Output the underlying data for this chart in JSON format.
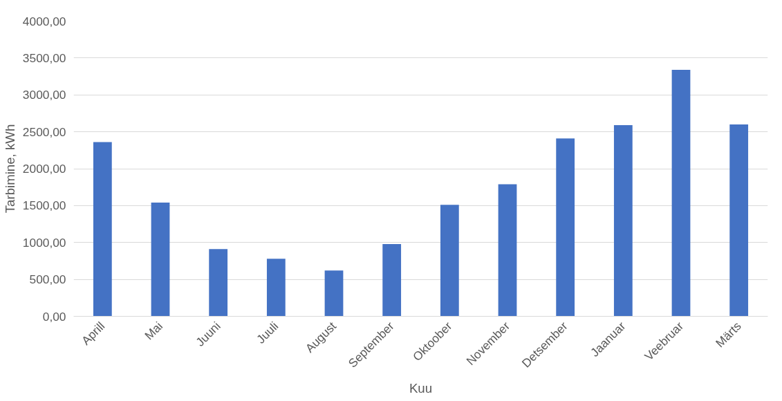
{
  "chart_data": {
    "type": "bar",
    "xlabel": "Kuu",
    "ylabel": "Tarbimine, kWh",
    "categories": [
      "Aprill",
      "Mai",
      "Juuni",
      "Juuli",
      "August",
      "September",
      "Oktoober",
      "November",
      "Detsember",
      "Jaanuar",
      "Veebruar",
      "Märts"
    ],
    "values": [
      2360,
      1540,
      910,
      780,
      620,
      980,
      1510,
      1790,
      2410,
      2590,
      3340,
      2600
    ],
    "color": "#4472c4",
    "ylim": [
      0,
      4000
    ],
    "yticks": [
      {
        "value": 0,
        "label": "0,00"
      },
      {
        "value": 500,
        "label": "500,00"
      },
      {
        "value": 1000,
        "label": "1000,00"
      },
      {
        "value": 1500,
        "label": "1500,00"
      },
      {
        "value": 2000,
        "label": "2000,00"
      },
      {
        "value": 2500,
        "label": "2500,00"
      },
      {
        "value": 3000,
        "label": "3000,00"
      },
      {
        "value": 3500,
        "label": "3500,00"
      },
      {
        "value": 4000,
        "label": "4000,00"
      }
    ],
    "grid": "y"
  }
}
